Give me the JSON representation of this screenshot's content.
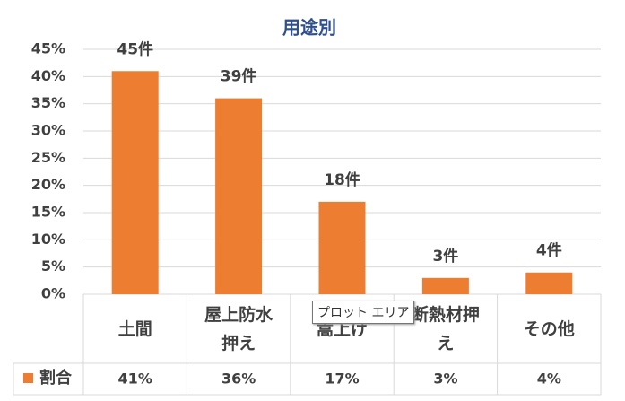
{
  "chart_data": {
    "type": "bar",
    "title": "用途別",
    "categories": [
      "土間",
      "屋上防水押え",
      "嵩上げ",
      "断熱材押え",
      "その他"
    ],
    "series": [
      {
        "name": "割合",
        "color": "#ed7d31",
        "values": [
          41,
          36,
          17,
          3,
          4
        ],
        "value_labels": [
          "41%",
          "36%",
          "17%",
          "3%",
          "4%"
        ]
      }
    ],
    "data_labels": [
      "45件",
      "39件",
      "18件",
      "3件",
      "4件"
    ],
    "ylim": [
      0,
      45
    ],
    "yticks": [
      {
        "value": 0,
        "label": "0%"
      },
      {
        "value": 5,
        "label": "5%"
      },
      {
        "value": 10,
        "label": "10%"
      },
      {
        "value": 15,
        "label": "15%"
      },
      {
        "value": 20,
        "label": "20%"
      },
      {
        "value": 25,
        "label": "25%"
      },
      {
        "value": 30,
        "label": "30%"
      },
      {
        "value": 35,
        "label": "35%"
      },
      {
        "value": 40,
        "label": "40%"
      },
      {
        "value": 45,
        "label": "45%"
      }
    ],
    "grid": true,
    "tooltip": "プロット エリア"
  }
}
